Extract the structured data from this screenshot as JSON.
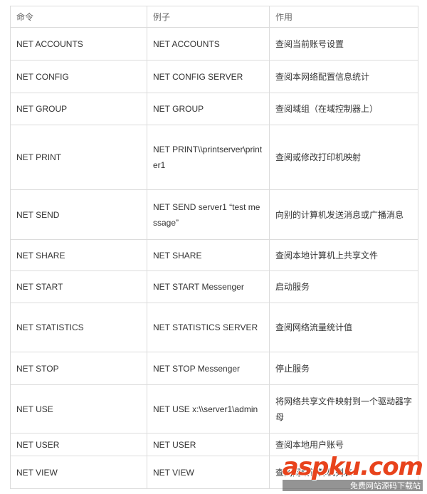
{
  "table": {
    "header": [
      "命令",
      "例子",
      "作用"
    ],
    "rows": [
      [
        "NET ACCOUNTS",
        "NET  ACCOUNTS",
        "查阅当前账号设置"
      ],
      [
        "NET CONFIG",
        "NET  CONFIG SERVER",
        "查阅本网络配置信息统计"
      ],
      [
        "NET GROUP",
        "NET  GROUP",
        "查阅域组（在域控制器上）"
      ],
      [
        "NET PRINT",
        "NET  PRINT\\\\printserver\\printer1",
        "查阅或修改打印机映射"
      ],
      [
        "NET SEND",
        "NET  SEND server1 “test message”",
        "向别的计算机发送消息或广播消息"
      ],
      [
        "NET SHARE",
        "NET  SHARE",
        "查阅本地计算机上共享文件"
      ],
      [
        "NET START",
        "NET  START Messenger",
        "启动服务"
      ],
      [
        "NET STATISTICS",
        "NET  STATISTICS SERVER",
        "查阅网络流量统计值"
      ],
      [
        "NET STOP",
        "NET  STOP Messenger",
        "停止服务"
      ],
      [
        "NET USE",
        "NET  USE x:\\\\server1\\admin",
        "将网络共享文件映射到一个驱动器字母"
      ],
      [
        "NET USER",
        "NET  USER",
        "查阅本地用户账号"
      ],
      [
        "NET VIEW",
        "NET  VIEW",
        "查阅网络计算机列表"
      ]
    ]
  },
  "watermark": {
    "logo": "aspku.com",
    "caption": "免费网站源码下载站"
  }
}
